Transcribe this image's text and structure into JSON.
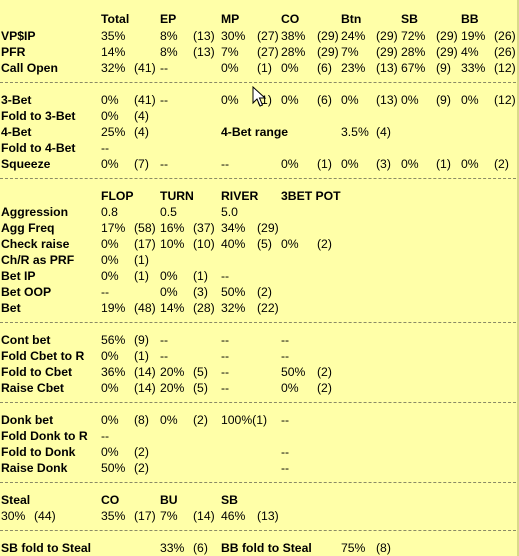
{
  "sections": [
    {
      "id": "preflop",
      "rows": [
        {
          "id": "header",
          "label": "",
          "bold": false,
          "cells": [
            {
              "text": "Total",
              "bold": true
            },
            {
              "text": "EP",
              "bold": true
            },
            {
              "text": "MP",
              "bold": true
            },
            {
              "text": "CO",
              "bold": true
            },
            {
              "text": "Btn",
              "bold": true
            },
            {
              "text": "SB",
              "bold": true
            },
            {
              "text": "BB",
              "bold": true
            }
          ]
        },
        {
          "id": "vpip",
          "label": "VP$IP",
          "bold": true,
          "cells": [
            {
              "text": "35%"
            },
            {
              "text": "8%"
            },
            {
              "text": "(13)"
            },
            {
              "text": "30%"
            },
            {
              "text": "(27)"
            },
            {
              "text": "38%"
            },
            {
              "text": "(29)"
            },
            {
              "text": "24%"
            },
            {
              "text": "(29)"
            },
            {
              "text": "72%"
            },
            {
              "text": "(29)"
            },
            {
              "text": "19%"
            },
            {
              "text": "(26)"
            }
          ]
        },
        {
          "id": "pfr",
          "label": "PFR",
          "bold": true,
          "cells": [
            {
              "text": "14%"
            },
            {
              "text": "8%"
            },
            {
              "text": "(13)"
            },
            {
              "text": "7%"
            },
            {
              "text": "(27)"
            },
            {
              "text": "28%"
            },
            {
              "text": "(29)"
            },
            {
              "text": "7%"
            },
            {
              "text": "(29)"
            },
            {
              "text": "28%"
            },
            {
              "text": "(29)"
            },
            {
              "text": "4%"
            },
            {
              "text": "(26)"
            }
          ]
        },
        {
          "id": "call-open",
          "label": "Call Open",
          "bold": true,
          "cells": [
            {
              "text": "32%"
            },
            {
              "text": "(41)"
            },
            {
              "text": "--"
            },
            {
              "text": "0%"
            },
            {
              "text": "(1)"
            },
            {
              "text": "0%"
            },
            {
              "text": "(6)"
            },
            {
              "text": "23%"
            },
            {
              "text": "(13)"
            },
            {
              "text": "67%"
            },
            {
              "text": "(9)"
            },
            {
              "text": "33%"
            },
            {
              "text": "(12)"
            }
          ]
        }
      ]
    },
    {
      "id": "threebet",
      "rows": [
        {
          "id": "3bet",
          "label": "3-Bet",
          "bold": true,
          "cells": [
            {
              "text": "0%"
            },
            {
              "text": "(41)"
            },
            {
              "text": "--"
            },
            {
              "text": "0%"
            },
            {
              "text": "(1)"
            },
            {
              "text": "0%"
            },
            {
              "text": "(6)"
            },
            {
              "text": "0%"
            },
            {
              "text": "(13)"
            },
            {
              "text": "0%"
            },
            {
              "text": "(9)"
            },
            {
              "text": "0%"
            },
            {
              "text": "(12)"
            }
          ]
        },
        {
          "id": "fold-3bet",
          "label": "Fold to 3-Bet",
          "bold": true,
          "cells": [
            {
              "text": "0%"
            },
            {
              "text": "(4)"
            }
          ]
        },
        {
          "id": "4bet",
          "label": "4-Bet",
          "bold": true,
          "cells": [
            {
              "text": "25%"
            },
            {
              "text": "(4)"
            },
            {
              "text": "4-Bet range",
              "bold": true
            },
            {
              "text": "3.5%"
            },
            {
              "text": "(4)"
            }
          ]
        },
        {
          "id": "fold-4bet",
          "label": "Fold to 4-Bet",
          "bold": true,
          "cells": [
            {
              "text": "--"
            }
          ]
        },
        {
          "id": "squeeze",
          "label": "Squeeze",
          "bold": true,
          "cells": [
            {
              "text": "0%"
            },
            {
              "text": "(7)"
            },
            {
              "text": "--"
            },
            {
              "text": "--"
            },
            {
              "text": "0%"
            },
            {
              "text": "(1)"
            },
            {
              "text": "0%"
            },
            {
              "text": "(3)"
            },
            {
              "text": "0%"
            },
            {
              "text": "(1)"
            },
            {
              "text": "0%"
            },
            {
              "text": "(2)"
            }
          ]
        }
      ]
    },
    {
      "id": "postflop",
      "rows": [
        {
          "id": "header2",
          "label": "",
          "bold": false,
          "cells": [
            {
              "text": "FLOP",
              "bold": true
            },
            {
              "text": "TURN",
              "bold": true
            },
            {
              "text": "RIVER",
              "bold": true
            },
            {
              "text": "3BET POT",
              "bold": true
            }
          ]
        },
        {
          "id": "aggression",
          "label": "Aggression",
          "bold": true,
          "cells": [
            {
              "text": "0.8"
            },
            {
              "text": "0.5"
            },
            {
              "text": "5.0"
            }
          ]
        },
        {
          "id": "agg-freq",
          "label": "Agg Freq",
          "bold": true,
          "cells": [
            {
              "text": "17%"
            },
            {
              "text": "(58)"
            },
            {
              "text": "16%"
            },
            {
              "text": "(37)"
            },
            {
              "text": "34%"
            },
            {
              "text": "(29)"
            }
          ]
        },
        {
          "id": "check-raise",
          "label": "Check raise",
          "bold": true,
          "cells": [
            {
              "text": "0%"
            },
            {
              "text": "(17)"
            },
            {
              "text": "10%"
            },
            {
              "text": "(10)"
            },
            {
              "text": "40%"
            },
            {
              "text": "(5)"
            },
            {
              "text": "0%"
            },
            {
              "text": "(2)"
            }
          ]
        },
        {
          "id": "chr-prf",
          "label": "Ch/R as PRF",
          "bold": true,
          "cells": [
            {
              "text": "0%"
            },
            {
              "text": "(1)"
            }
          ]
        },
        {
          "id": "bet-ip",
          "label": "Bet IP",
          "bold": true,
          "cells": [
            {
              "text": "0%"
            },
            {
              "text": "(1)"
            },
            {
              "text": "0%"
            },
            {
              "text": "(1)"
            },
            {
              "text": "--"
            }
          ]
        },
        {
          "id": "bet-oop",
          "label": "Bet OOP",
          "bold": true,
          "cells": [
            {
              "text": "--"
            },
            {
              "text": "0%"
            },
            {
              "text": "(3)"
            },
            {
              "text": "50%"
            },
            {
              "text": "(2)"
            }
          ]
        },
        {
          "id": "bet",
          "label": "Bet",
          "bold": true,
          "cells": [
            {
              "text": "19%"
            },
            {
              "text": "(48)"
            },
            {
              "text": "14%"
            },
            {
              "text": "(28)"
            },
            {
              "text": "32%"
            },
            {
              "text": "(22)"
            }
          ]
        }
      ]
    },
    {
      "id": "cbet",
      "rows": [
        {
          "id": "cont-bet",
          "label": "Cont bet",
          "bold": true,
          "cells": [
            {
              "text": "56%"
            },
            {
              "text": "(9)"
            },
            {
              "text": "--"
            },
            {
              "text": "--"
            },
            {
              "text": "--"
            }
          ]
        },
        {
          "id": "fold-cbet-r",
          "label": "Fold Cbet to R",
          "bold": true,
          "cells": [
            {
              "text": "0%"
            },
            {
              "text": "(1)"
            },
            {
              "text": "--"
            },
            {
              "text": "--"
            },
            {
              "text": "--"
            }
          ]
        },
        {
          "id": "fold-cbet",
          "label": "Fold to Cbet",
          "bold": true,
          "cells": [
            {
              "text": "36%"
            },
            {
              "text": "(14)"
            },
            {
              "text": "20%"
            },
            {
              "text": "(5)"
            },
            {
              "text": "--"
            },
            {
              "text": "50%"
            },
            {
              "text": "(2)"
            }
          ]
        },
        {
          "id": "raise-cbet",
          "label": "Raise Cbet",
          "bold": true,
          "cells": [
            {
              "text": "0%"
            },
            {
              "text": "(14)"
            },
            {
              "text": "20%"
            },
            {
              "text": "(5)"
            },
            {
              "text": "--"
            },
            {
              "text": "0%"
            },
            {
              "text": "(2)"
            }
          ]
        }
      ]
    },
    {
      "id": "donk",
      "rows": [
        {
          "id": "donk-bet",
          "label": "Donk bet",
          "bold": true,
          "cells": [
            {
              "text": "0%"
            },
            {
              "text": "(8)"
            },
            {
              "text": "0%"
            },
            {
              "text": "(2)"
            },
            {
              "text": "100%(1)"
            },
            {
              "text": "--"
            }
          ]
        },
        {
          "id": "fold-donk-r",
          "label": "Fold Donk to R",
          "bold": true,
          "cells": [
            {
              "text": "--"
            }
          ]
        },
        {
          "id": "fold-donk",
          "label": "Fold to Donk",
          "bold": true,
          "cells": [
            {
              "text": "0%"
            },
            {
              "text": "(2)"
            },
            {
              "text": "--"
            }
          ]
        },
        {
          "id": "raise-donk",
          "label": "Raise Donk",
          "bold": true,
          "cells": [
            {
              "text": "50%"
            },
            {
              "text": "(2)"
            },
            {
              "text": "--"
            }
          ]
        }
      ]
    },
    {
      "id": "steal",
      "rows": [
        {
          "id": "steal-header",
          "label": "Steal",
          "bold": true,
          "cells": [
            {
              "text": "CO",
              "bold": true
            },
            {
              "text": "BU",
              "bold": true
            },
            {
              "text": "SB",
              "bold": true
            }
          ]
        },
        {
          "id": "steal-values",
          "label": "",
          "bold": false,
          "cells": [
            {
              "text": "30%"
            },
            {
              "text": "(44)"
            },
            {
              "text": "35%"
            },
            {
              "text": "(17)"
            },
            {
              "text": "7%"
            },
            {
              "text": "(14)"
            },
            {
              "text": "46%"
            },
            {
              "text": "(13)"
            }
          ]
        }
      ]
    },
    {
      "id": "steal-defense",
      "rows": [
        {
          "id": "fold-steal",
          "label": "SB fold to Steal",
          "bold": true,
          "cells": [
            {
              "text": "33%"
            },
            {
              "text": "(6)"
            },
            {
              "text": "BB fold to Steal",
              "bold": true
            },
            {
              "text": "75%"
            },
            {
              "text": "(8)"
            }
          ]
        }
      ]
    }
  ],
  "colors": {
    "background": "#FFFFA8",
    "separator": "#8a8a66",
    "text": "#000000"
  },
  "cursor_icon": "mouse-pointer-icon"
}
